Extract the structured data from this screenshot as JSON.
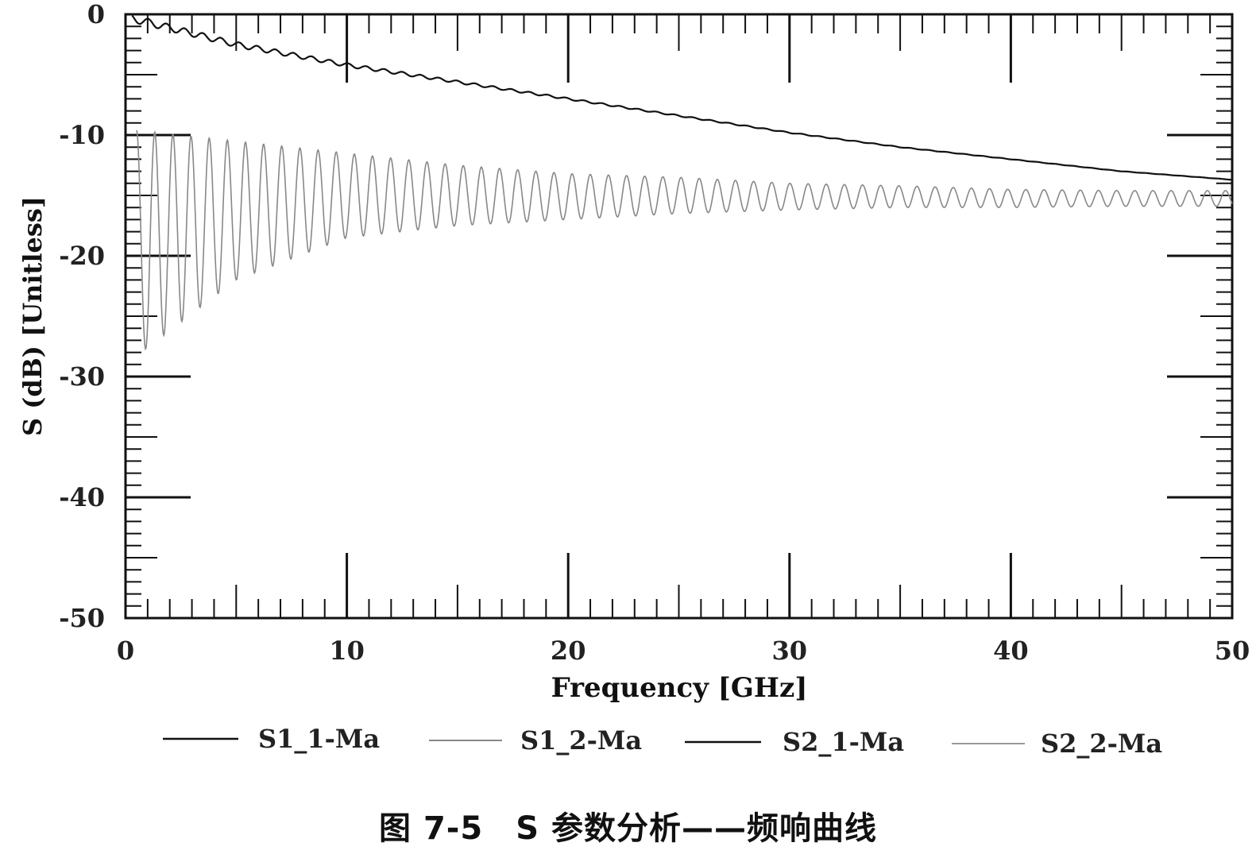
{
  "caption": "图 7-5　S 参数分析——频响曲线",
  "chart_data": {
    "type": "line",
    "xlabel": "Frequency [GHz]",
    "ylabel": "S (dB) [Unitless]",
    "xlim": [
      0,
      50
    ],
    "ylim": [
      -50,
      0
    ],
    "x_ticks": [
      0,
      10,
      20,
      30,
      40,
      50
    ],
    "y_ticks": [
      0,
      -10,
      -20,
      -30,
      -40,
      -50
    ],
    "grid": false,
    "legend_position": "bottom",
    "series": [
      {
        "name": "S1_1-Ma",
        "color": "#111111",
        "x": [
          0,
          5,
          10,
          15,
          20,
          25,
          30,
          35,
          40,
          45,
          50
        ],
        "y": [
          -0.2,
          -2.5,
          -4.2,
          -5.6,
          -7.0,
          -8.4,
          -9.8,
          -11.0,
          -12.0,
          -13.0,
          -13.7
        ],
        "ripple": "small periodic ripple decaying with frequency"
      },
      {
        "name": "S1_2-Ma",
        "color": "#888888",
        "x": [
          0,
          5,
          10,
          15,
          20,
          25,
          30,
          35,
          40,
          45,
          50
        ],
        "y": [
          -16,
          -15.5,
          -15.5,
          -15.3,
          -15.2,
          -15.0,
          -15.0,
          -15.1,
          -15.2,
          -15.2,
          -15.3
        ],
        "envelope_upper": [
          -9.5,
          -10.5,
          -11.5,
          -12.5,
          -13.2,
          -13.5,
          -14.0,
          -14.2,
          -14.5,
          -14.6,
          -14.6
        ],
        "envelope_lower": [
          -29,
          -22,
          -18.5,
          -17.5,
          -17.0,
          -16.5,
          -16.2,
          -16.0,
          -16.0,
          -15.9,
          -15.9
        ],
        "ripple": "strong periodic ripple, damped with frequency"
      },
      {
        "name": "S2_1-Ma",
        "color": "#111111",
        "overlaps": "S1_1-Ma"
      },
      {
        "name": "S2_2-Ma",
        "color": "#999999",
        "overlaps": "S1_2-Ma"
      }
    ]
  }
}
